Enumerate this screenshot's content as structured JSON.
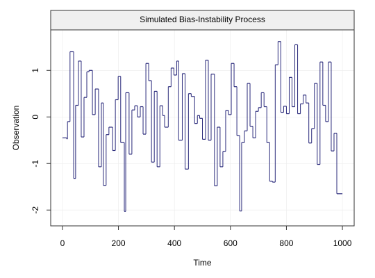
{
  "chart_data": {
    "type": "line",
    "step": "post",
    "title": "Simulated Bias-Instability Process",
    "xlabel": "Time",
    "ylabel": "Observation",
    "color": "#28287a",
    "grid": true,
    "xlim": [
      -42,
      1042
    ],
    "ylim": [
      -2.34,
      1.87
    ],
    "xticks": [
      0,
      200,
      400,
      600,
      800,
      1000
    ],
    "yticks": [
      -2,
      -1,
      0,
      1
    ],
    "x": [
      0,
      15,
      18,
      27,
      40,
      47,
      57,
      67,
      77,
      87,
      95,
      107,
      117,
      129,
      139,
      146,
      156,
      166,
      179,
      189,
      199,
      208,
      221,
      226,
      238,
      248,
      258,
      268,
      278,
      288,
      298,
      308,
      318,
      328,
      338,
      348,
      358,
      365,
      378,
      388,
      398,
      408,
      415,
      428,
      438,
      450,
      460,
      472,
      482,
      490,
      500,
      511,
      521,
      531,
      543,
      553,
      563,
      573,
      583,
      593,
      603,
      613,
      623,
      633,
      640,
      650,
      660,
      670,
      680,
      690,
      700,
      710,
      720,
      730,
      740,
      750,
      760,
      770,
      780,
      790,
      800,
      810,
      820,
      830,
      840,
      850,
      860,
      870,
      880,
      890,
      900,
      910,
      920,
      930,
      940,
      950,
      960,
      970,
      980,
      1000
    ],
    "values": [
      -0.45,
      -0.47,
      -0.1,
      1.4,
      -1.32,
      0.25,
      1.2,
      -0.43,
      0.42,
      0.97,
      1.0,
      0.05,
      0.6,
      -1.07,
      0.3,
      -1.47,
      -0.38,
      -0.22,
      -0.72,
      0.37,
      0.87,
      -0.55,
      -2.03,
      0.52,
      -0.8,
      0.15,
      0.24,
      0.0,
      0.22,
      -0.37,
      1.15,
      0.78,
      -0.97,
      0.55,
      -1.07,
      0.24,
      0.03,
      -0.22,
      0.65,
      1.05,
      0.9,
      1.2,
      -0.5,
      0.93,
      -1.12,
      0.5,
      0.44,
      -0.14,
      0.03,
      -0.03,
      -0.48,
      1.22,
      -0.5,
      0.92,
      -1.48,
      -0.22,
      -1.07,
      -0.74,
      0.14,
      0.05,
      1.15,
      0.65,
      -0.4,
      -2.02,
      -0.55,
      -0.3,
      0.72,
      -0.2,
      -0.45,
      0.12,
      0.2,
      0.52,
      0.22,
      -0.55,
      -1.38,
      -1.4,
      1.12,
      1.62,
      0.1,
      0.23,
      0.07,
      0.85,
      0.22,
      1.55,
      0.07,
      0.28,
      0.47,
      0.3,
      -0.56,
      -0.25,
      0.72,
      -1.02,
      1.18,
      0.25,
      -0.1,
      1.18,
      -0.73,
      -0.35,
      -1.65,
      -1.65
    ]
  }
}
